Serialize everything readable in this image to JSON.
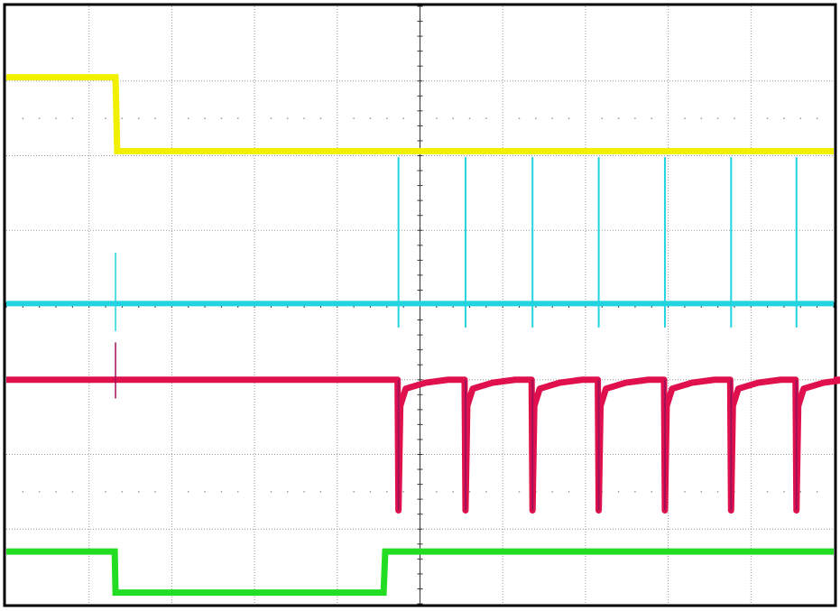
{
  "chart_data": {
    "type": "line",
    "title": "",
    "xlabel": "",
    "ylabel": "",
    "xlim": [
      0,
      10
    ],
    "ylim": [
      -4,
      4
    ],
    "x_units": "divisions",
    "y_units": "divisions",
    "grid": true,
    "grid_style": "dotted",
    "background": "#ffffff",
    "series": [
      {
        "color": "#f0f000",
        "kind": "step",
        "points": [
          [
            0,
            3.05
          ],
          [
            1.32,
            3.05
          ],
          [
            1.34,
            2.06
          ],
          [
            10,
            2.06
          ]
        ]
      },
      {
        "color": "#22d3e0",
        "kind": "baseline-spikes",
        "baseline": 0.02,
        "spike_top": 1.98,
        "spike_bottom": -0.3,
        "spikes": [
          4.74,
          5.55,
          6.36,
          7.16,
          7.96,
          8.76,
          9.55
        ],
        "small_spike": {
          "x": 1.32,
          "top": 0.7,
          "bottom": -0.35
        }
      },
      {
        "color": "#e0104c",
        "kind": "baseline-dips",
        "baseline": -1.0,
        "dip_bottom": -2.75,
        "dips": [
          4.74,
          5.55,
          6.36,
          7.16,
          7.96,
          8.76,
          9.55
        ],
        "small_pulse": {
          "x": 1.32,
          "top": -0.5,
          "bottom": -1.25
        }
      },
      {
        "color": "#22dd22",
        "kind": "step",
        "points": [
          [
            0,
            -3.3
          ],
          [
            1.31,
            -3.3
          ],
          [
            1.32,
            -3.85
          ],
          [
            4.56,
            -3.85
          ],
          [
            4.58,
            -3.3
          ],
          [
            10,
            -3.3
          ]
        ]
      }
    ]
  }
}
